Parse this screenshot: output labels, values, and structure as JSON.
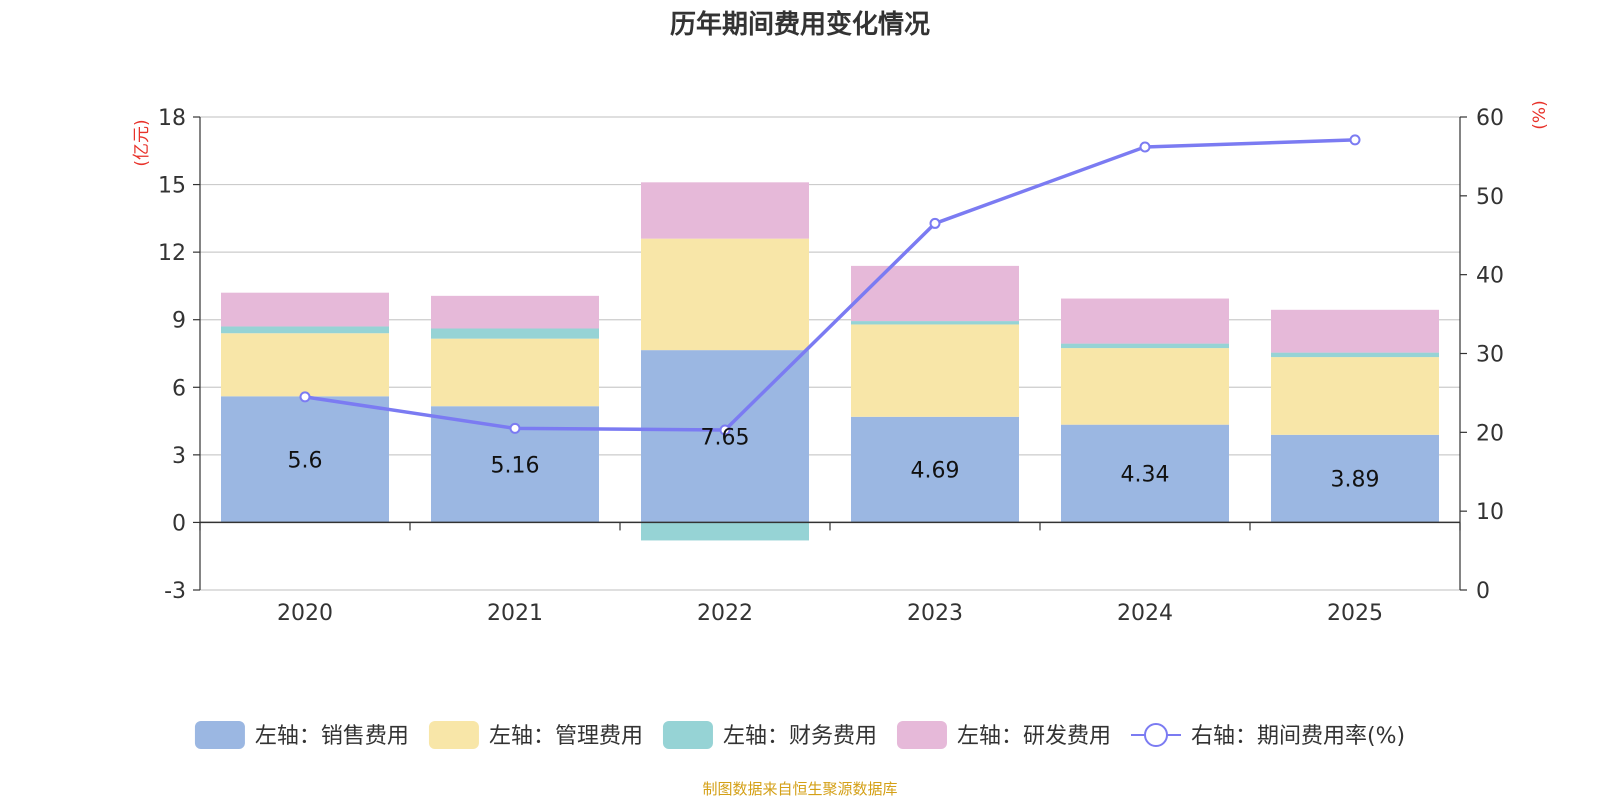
{
  "title": "历年期间费用变化情况",
  "source": "制图数据来自恒生聚源数据库",
  "colors": {
    "sales": "#9bb7e2",
    "admin": "#f8e6a8",
    "finance": "#96d3d5",
    "rd": "#e6b9d9",
    "rate": "#7b7bf2",
    "unit": "#e8322a",
    "grid": "#cccccc",
    "axis": "#333333"
  },
  "chart_data": {
    "type": "bar",
    "stacked": true,
    "categories": [
      "2020",
      "2021",
      "2022",
      "2023",
      "2024",
      "2025"
    ],
    "left_axis": {
      "unit": "(亿元)",
      "ylim": [
        -3,
        18
      ],
      "ticks": [
        -3,
        0,
        3,
        6,
        9,
        12,
        15,
        18
      ]
    },
    "right_axis": {
      "unit": "(%)",
      "ylim": [
        0,
        60
      ],
      "ticks": [
        0,
        10,
        20,
        30,
        40,
        50,
        60
      ]
    },
    "series": [
      {
        "key": "sales",
        "name": "左轴：销售费用",
        "axis": "left",
        "type": "bar",
        "values": [
          5.6,
          5.16,
          7.65,
          4.69,
          4.34,
          3.89
        ],
        "labels": [
          "5.6",
          "5.16",
          "7.65",
          "4.69",
          "4.34",
          "3.89"
        ]
      },
      {
        "key": "admin",
        "name": "左轴：管理费用",
        "axis": "left",
        "type": "bar",
        "values": [
          2.8,
          3.0,
          4.95,
          4.1,
          3.4,
          3.45
        ]
      },
      {
        "key": "finance",
        "name": "左轴：财务费用",
        "axis": "left",
        "type": "bar",
        "values": [
          0.3,
          0.45,
          -0.8,
          0.15,
          0.2,
          0.2
        ]
      },
      {
        "key": "rd",
        "name": "左轴：研发费用",
        "axis": "left",
        "type": "bar",
        "values": [
          1.5,
          1.45,
          2.5,
          2.45,
          2.0,
          1.9
        ]
      },
      {
        "key": "rate",
        "name": "右轴：期间费用率(%)",
        "axis": "right",
        "type": "line",
        "values": [
          24.5,
          20.5,
          20.3,
          46.5,
          56.2,
          57.1
        ]
      }
    ],
    "legend_position": "bottom",
    "grid": true
  }
}
